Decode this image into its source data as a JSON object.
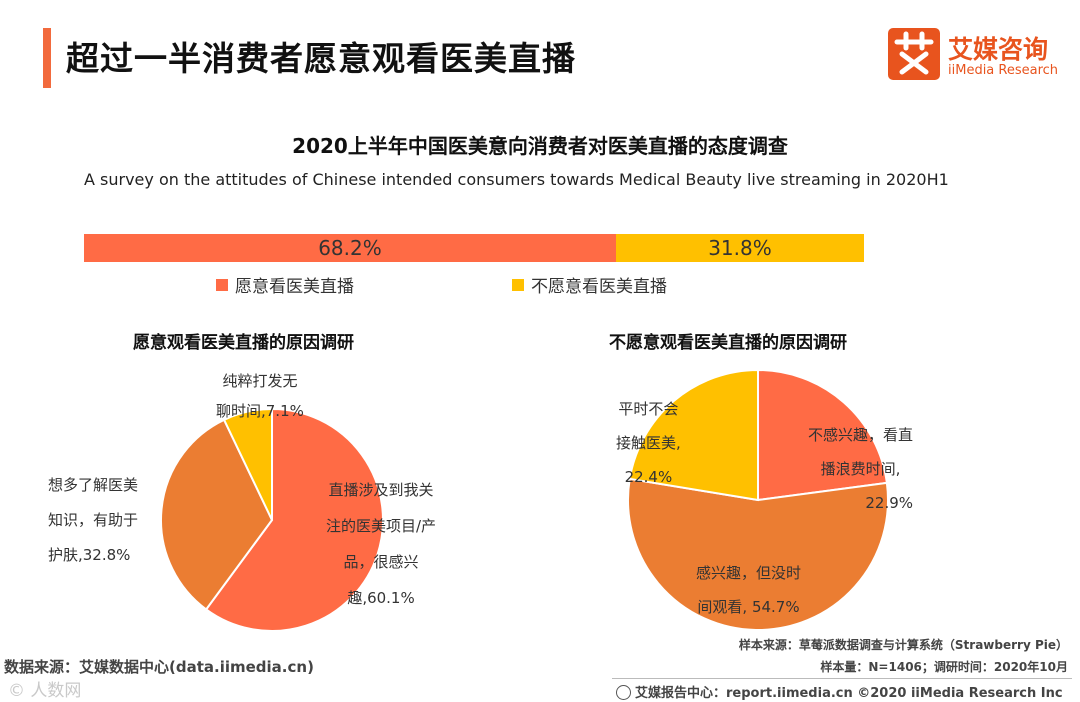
{
  "header": {
    "title": "超过一半消费者愿意观看医美直播",
    "logo_icon": "ai-character-logo-icon",
    "logo_cn": "艾媒咨询",
    "logo_en": "iiMedia Research"
  },
  "colors": {
    "accent": "#f26a3d",
    "orange": "#ff6b45",
    "dark_orange": "#eb7d32",
    "yellow": "#ffc000"
  },
  "chart_data": [
    {
      "type": "bar",
      "title": "2020上半年中国医美意向消费者对医美直播的态度调查",
      "subtitle": "A survey on the attitudes of Chinese intended consumers towards Medical Beauty live streaming in 2020H1",
      "orientation": "horizontal-stacked",
      "series": [
        {
          "name": "愿意看医美直播",
          "value": 68.2,
          "label": "68.2%",
          "color": "#ff6b45"
        },
        {
          "name": "不愿意看医美直播",
          "value": 31.8,
          "label": "31.8%",
          "color": "#ffc000"
        }
      ]
    },
    {
      "type": "pie",
      "title": "愿意观看医美直播的原因调研",
      "slices": [
        {
          "name": "直播涉及到我关注的医美项目/产品，很感兴趣",
          "value": 60.1,
          "label_lines": [
            "直播涉及到我关",
            "注的医美项目/产",
            "品，很感兴",
            "趣,60.1%"
          ],
          "color": "#ff6b45"
        },
        {
          "name": "想多了解医美知识，有助于护肤",
          "value": 32.8,
          "label_lines": [
            "想多了解医美",
            "知识，有助于",
            "护肤,32.8%"
          ],
          "color": "#eb7d32"
        },
        {
          "name": "纯粹打发无聊时间",
          "value": 7.1,
          "label_lines": [
            "纯粹打发无",
            "聊时间,7.1%"
          ],
          "color": "#ffc000"
        }
      ]
    },
    {
      "type": "pie",
      "title": "不愿意观看医美直播的原因调研",
      "slices": [
        {
          "name": "不感兴趣，看直播浪费时间",
          "value": 22.9,
          "label_lines": [
            "不感兴趣，看直",
            "播浪费时间,",
            "22.9%"
          ],
          "color": "#ff6b45"
        },
        {
          "name": "感兴趣，但没时间观看",
          "value": 54.7,
          "label_lines": [
            "感兴趣，但没时",
            "间观看, 54.7%"
          ],
          "color": "#eb7d32"
        },
        {
          "name": "平时不会接触医美",
          "value": 22.4,
          "label_lines": [
            "平时不会",
            "接触医美,",
            "22.4%"
          ],
          "color": "#ffc000"
        }
      ]
    }
  ],
  "source": {
    "left": "数据来源：艾媒数据中心(data.iimedia.cn)",
    "right_line1": "样本来源：草莓派数据调查与计算系统（Strawberry Pie）",
    "right_line2": "样本量：N=1406；调研时间：2020年10月",
    "footer_icon": "globe-icon",
    "footer": "艾媒报告中心：report.iimedia.cn  ©2020  iiMedia Research  Inc",
    "watermark": "© 人数网"
  }
}
